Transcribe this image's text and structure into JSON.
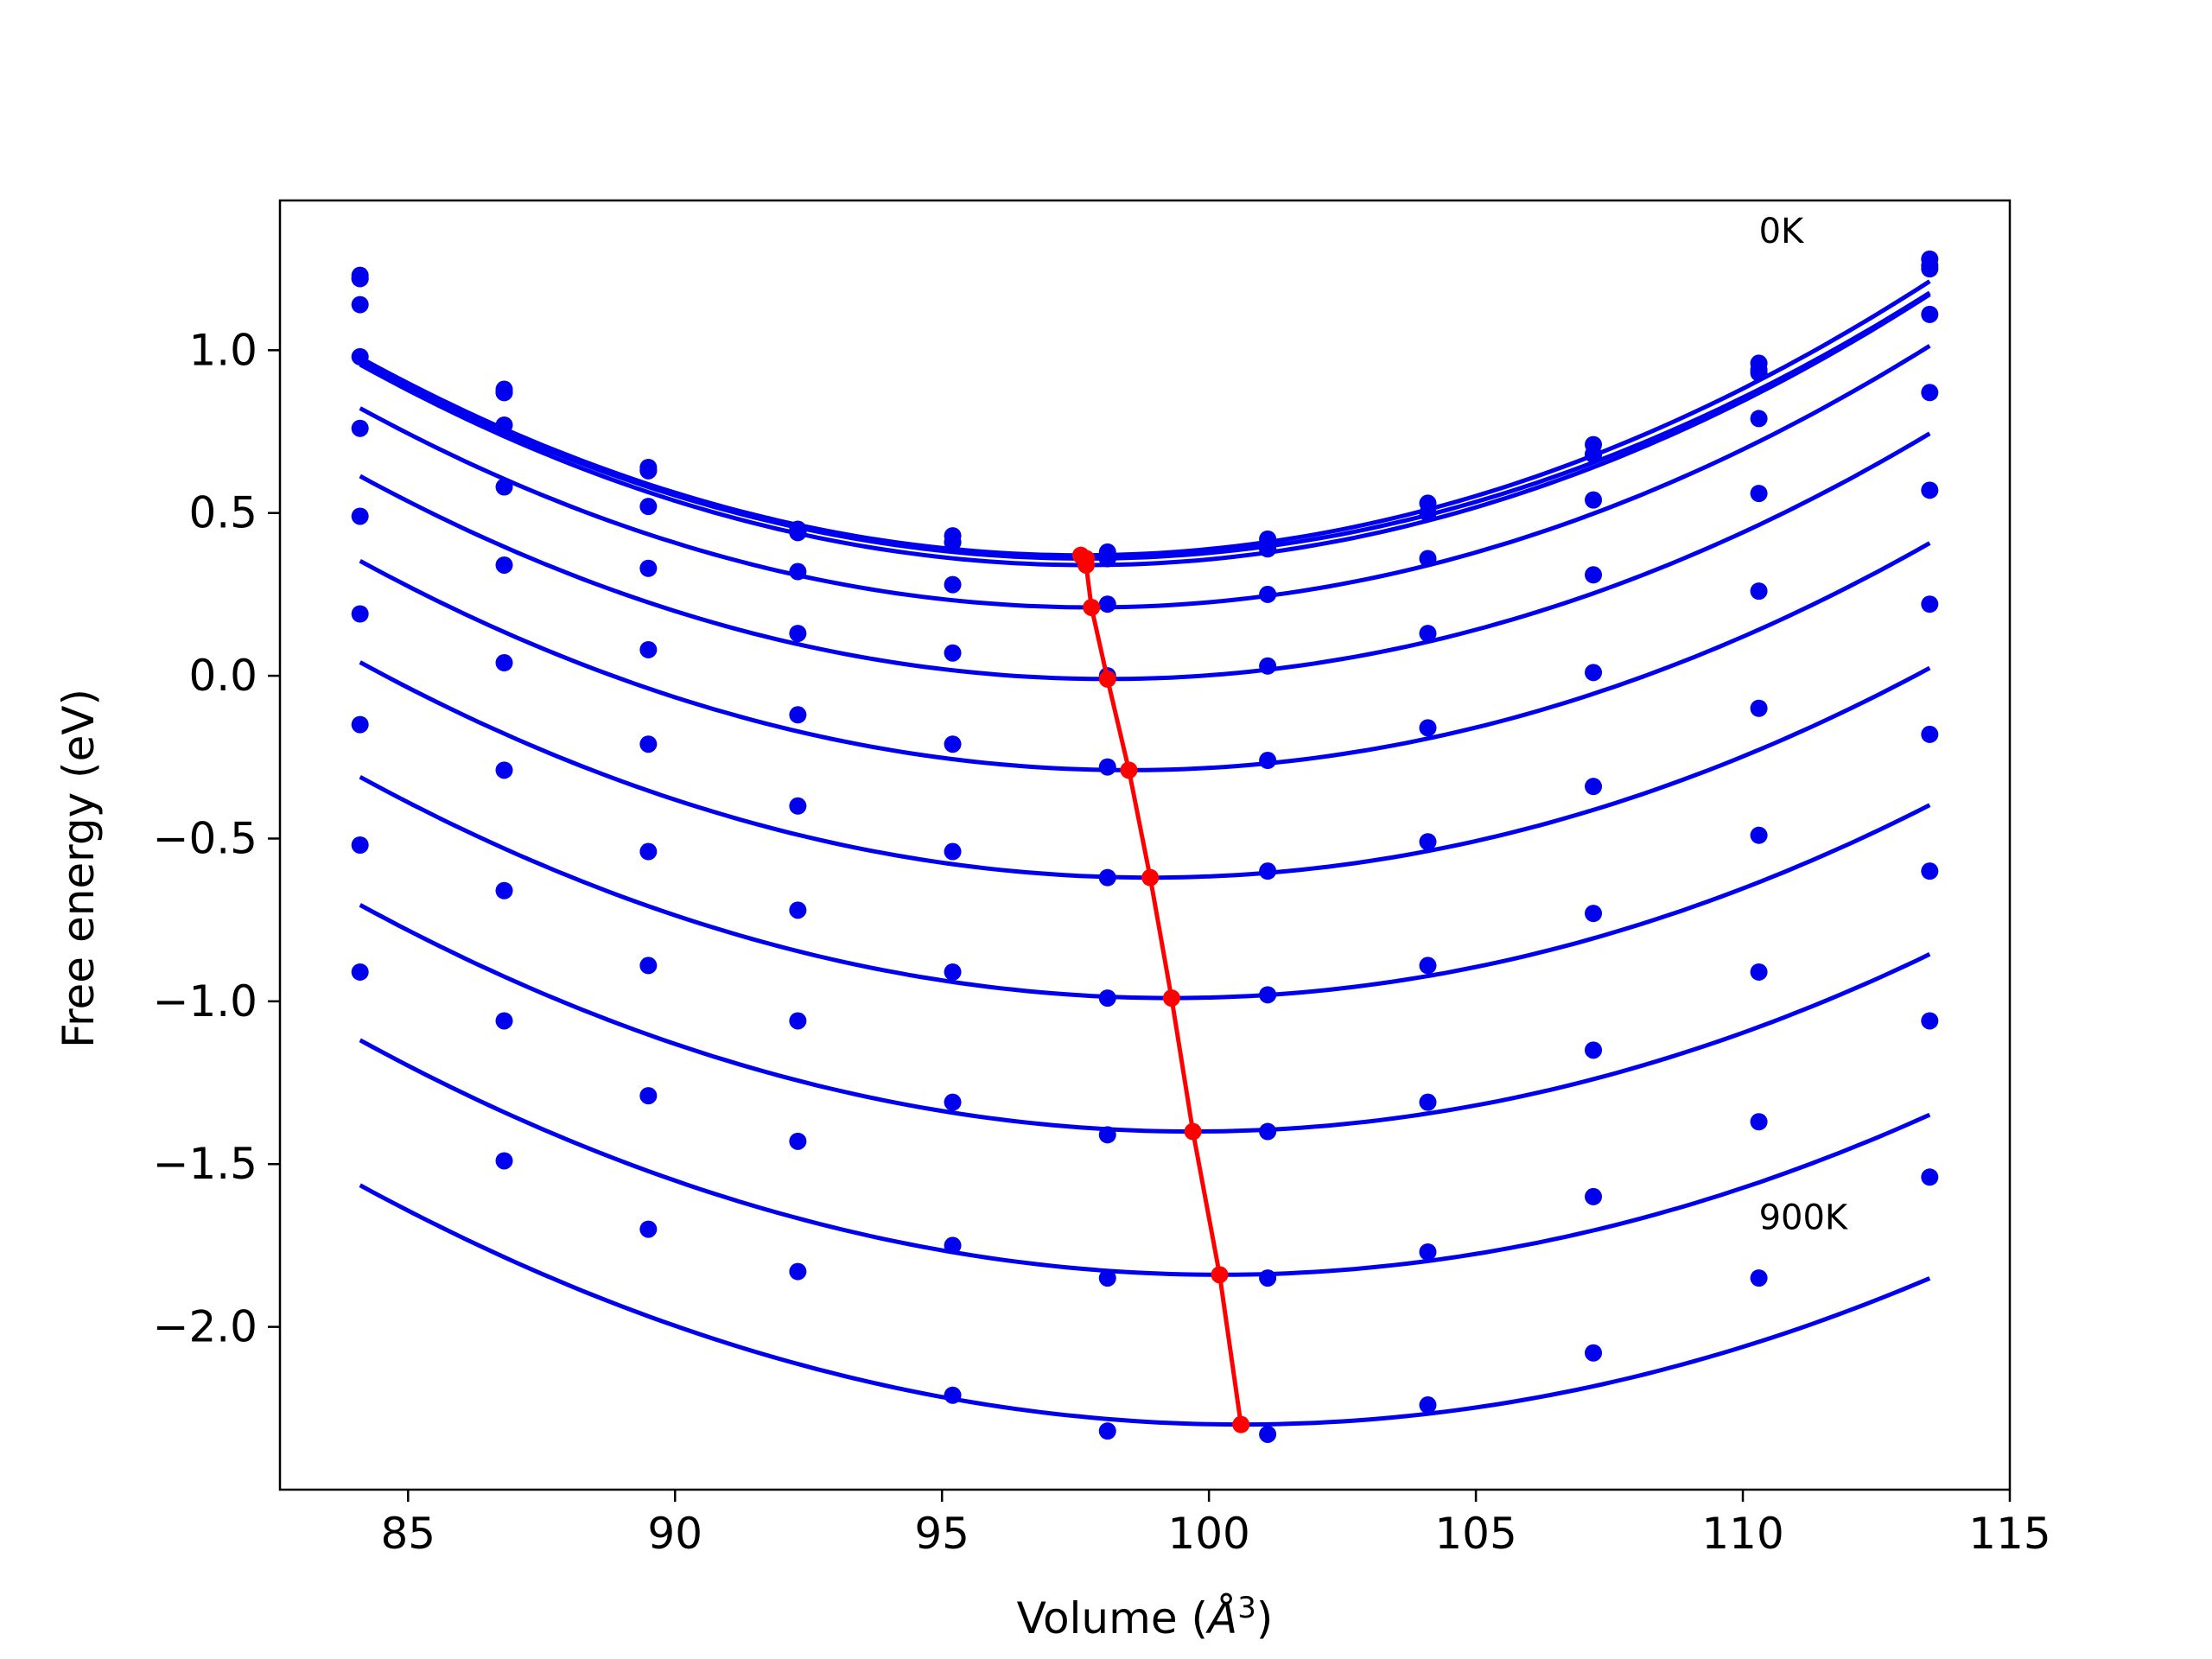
{
  "chart_data": {
    "type": "scatter",
    "xlabel": "Volume (",
    "xlabel_unit": "Å",
    "xlabel_exp": "3",
    "xlabel_close": ")",
    "ylabel": "Free energy (eV)",
    "xlim": [
      82.6,
      115.0
    ],
    "ylim": [
      -2.5,
      1.46
    ],
    "xticks": [
      85,
      90,
      95,
      100,
      105,
      110,
      115
    ],
    "xtick_labels": [
      "85",
      "90",
      "95",
      "100",
      "105",
      "110",
      "115"
    ],
    "yticks": [
      1.0,
      0.5,
      0.0,
      -0.5,
      -1.0,
      -1.5,
      -2.0
    ],
    "ytick_labels": [
      "1.0",
      "0.5",
      "0.0",
      "−0.5",
      "−1.0",
      "−1.5",
      "−2.0"
    ],
    "annotations": [
      {
        "text": "0K",
        "x": 110.3,
        "y": 1.33
      },
      {
        "text": "900K",
        "x": 110.3,
        "y": -1.7
      }
    ],
    "grid": false,
    "x": [
      84.1,
      86.8,
      89.5,
      92.3,
      95.2,
      98.1,
      101.1,
      104.1,
      107.2,
      110.3,
      113.5
    ],
    "series": [
      {
        "color": "#0000ee",
        "fit": [
          97.6,
          0.37,
          0.00333
        ],
        "points": [
          1.23,
          0.88,
          0.64,
          0.45,
          0.43,
          0.38,
          0.42,
          0.53,
          0.71,
          0.96,
          1.28
        ]
      },
      {
        "color": "#0000ee",
        "fit": [
          97.7,
          0.36,
          0.00327
        ],
        "points": [
          1.22,
          0.87,
          0.63,
          0.44,
          0.41,
          0.36,
          0.39,
          0.5,
          0.68,
          0.93,
          1.25
        ]
      },
      {
        "color": "#0000ee",
        "fit": [
          97.7,
          0.34,
          0.00333
        ],
        "points": [
          1.22,
          0.87,
          0.63,
          0.44,
          0.41,
          0.36,
          0.39,
          0.5,
          0.68,
          0.94,
          1.26
        ]
      },
      {
        "color": "#0000ee",
        "fit": [
          97.8,
          0.21,
          0.00326
        ],
        "points": [
          1.14,
          0.77,
          0.52,
          0.32,
          0.28,
          0.22,
          0.25,
          0.36,
          0.54,
          0.79,
          1.11
        ]
      },
      {
        "color": "#0000ee",
        "fit": [
          98.1,
          -0.01,
          0.00318
        ],
        "points": [
          0.98,
          0.58,
          0.33,
          0.13,
          0.07,
          0.0,
          0.03,
          0.13,
          0.31,
          0.56,
          0.87
        ]
      },
      {
        "color": "#0000ee",
        "fit": [
          98.5,
          -0.29,
          0.0031
        ],
        "points": [
          0.76,
          0.34,
          0.08,
          -0.12,
          -0.21,
          -0.28,
          -0.26,
          -0.16,
          0.01,
          0.26,
          0.57
        ]
      },
      {
        "color": "#0000ee",
        "fit": [
          98.9,
          -0.62,
          0.00302
        ],
        "points": [
          0.49,
          0.04,
          -0.21,
          -0.4,
          -0.54,
          -0.62,
          -0.6,
          -0.51,
          -0.34,
          -0.1,
          0.22
        ]
      },
      {
        "color": "#0000ee",
        "fit": [
          99.3,
          -0.99,
          0.00294
        ],
        "points": [
          0.19,
          -0.29,
          -0.54,
          -0.72,
          -0.91,
          -0.99,
          -0.98,
          -0.89,
          -0.73,
          -0.49,
          -0.18
        ]
      },
      {
        "color": "#0000ee",
        "fit": [
          99.7,
          -1.4,
          0.00286
        ],
        "points": [
          -0.15,
          -0.66,
          -0.89,
          -1.06,
          -1.31,
          -1.41,
          -1.4,
          -1.31,
          -1.15,
          -0.91,
          -0.6
        ]
      },
      {
        "color": "#0000ee",
        "fit": [
          100.2,
          -1.84,
          0.00278
        ],
        "points": [
          -0.52,
          -1.06,
          -1.29,
          -1.43,
          -1.75,
          -1.85,
          -1.85,
          -1.77,
          -1.6,
          -1.37,
          -1.06
        ]
      },
      {
        "color": "#0000ee",
        "fit": [
          100.6,
          -2.3,
          0.0027
        ],
        "points": [
          -0.91,
          -1.49,
          -1.7,
          -1.83,
          -2.21,
          -2.32,
          -2.33,
          -2.24,
          -2.08,
          -1.85,
          -1.54
        ]
      }
    ],
    "minima": {
      "color": "#ff0000",
      "x": [
        97.6,
        97.7,
        97.7,
        97.8,
        98.1,
        98.5,
        98.9,
        99.3,
        99.7,
        100.2,
        100.6
      ],
      "y": [
        0.37,
        0.36,
        0.34,
        0.21,
        -0.01,
        -0.29,
        -0.62,
        -0.99,
        -1.4,
        -1.84,
        -2.3
      ]
    }
  }
}
